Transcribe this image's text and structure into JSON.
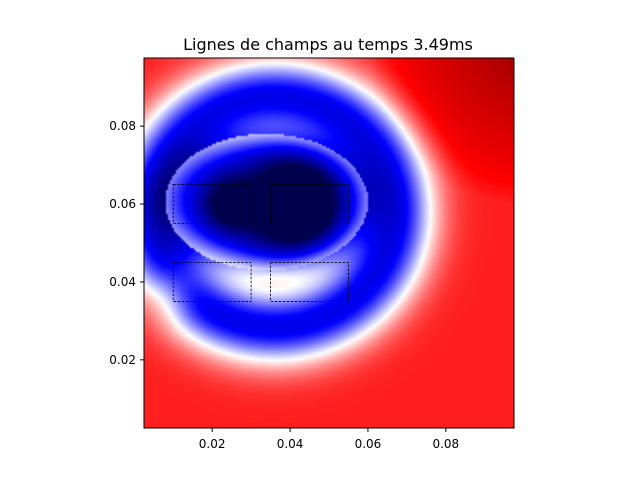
{
  "chart_data": {
    "type": "heatmap",
    "title": "Lignes de champs au temps 3.49ms",
    "xlabel": "",
    "ylabel": "",
    "xlim": [
      0.0025,
      0.0975
    ],
    "ylim": [
      0.0025,
      0.0975
    ],
    "xticks": [
      {
        "value": 0.02,
        "label": "0.02"
      },
      {
        "value": 0.04,
        "label": "0.04"
      },
      {
        "value": 0.06,
        "label": "0.06"
      },
      {
        "value": 0.08,
        "label": "0.08"
      }
    ],
    "yticks": [
      {
        "value": 0.02,
        "label": "0.02"
      },
      {
        "value": 0.04,
        "label": "0.04"
      },
      {
        "value": 0.06,
        "label": "0.06"
      },
      {
        "value": 0.08,
        "label": "0.08"
      }
    ],
    "colormap": "seismic",
    "colors": {
      "low": "#00004d",
      "mid_low": "#0000ff",
      "mid": "#ffffff",
      "mid_high": "#ff0000",
      "high": "#800000"
    },
    "field": {
      "base_level": 0.72,
      "corner_darkening": {
        "x": 0.1,
        "y": 0.1,
        "amount": 0.22
      },
      "blue_region": {
        "cx": 0.034,
        "cy": 0.0605,
        "rx": 0.026,
        "ry": 0.0175,
        "depth": 0.55
      },
      "blue_cores": [
        {
          "x": 0.042,
          "y": 0.06,
          "r": 0.012,
          "depth": 0.42
        },
        {
          "x": 0.024,
          "y": 0.06,
          "r": 0.007,
          "depth": 0.22
        }
      ],
      "white_halo": {
        "cx": 0.036,
        "cy": 0.058,
        "r": 0.031,
        "width": 0.01,
        "amount": 0.5
      },
      "dark_red_patch": {
        "x": 0.009,
        "y": 0.037,
        "r": 0.007,
        "amount": 0.12
      }
    },
    "rectangles": [
      {
        "x0": 0.01,
        "y0": 0.055,
        "x1": 0.03,
        "y1": 0.065
      },
      {
        "x0": 0.035,
        "y0": 0.055,
        "x1": 0.055,
        "y1": 0.065
      },
      {
        "x0": 0.01,
        "y0": 0.035,
        "x1": 0.03,
        "y1": 0.045
      },
      {
        "x0": 0.035,
        "y0": 0.035,
        "x1": 0.055,
        "y1": 0.045
      }
    ],
    "grid": false,
    "legend": "none"
  }
}
